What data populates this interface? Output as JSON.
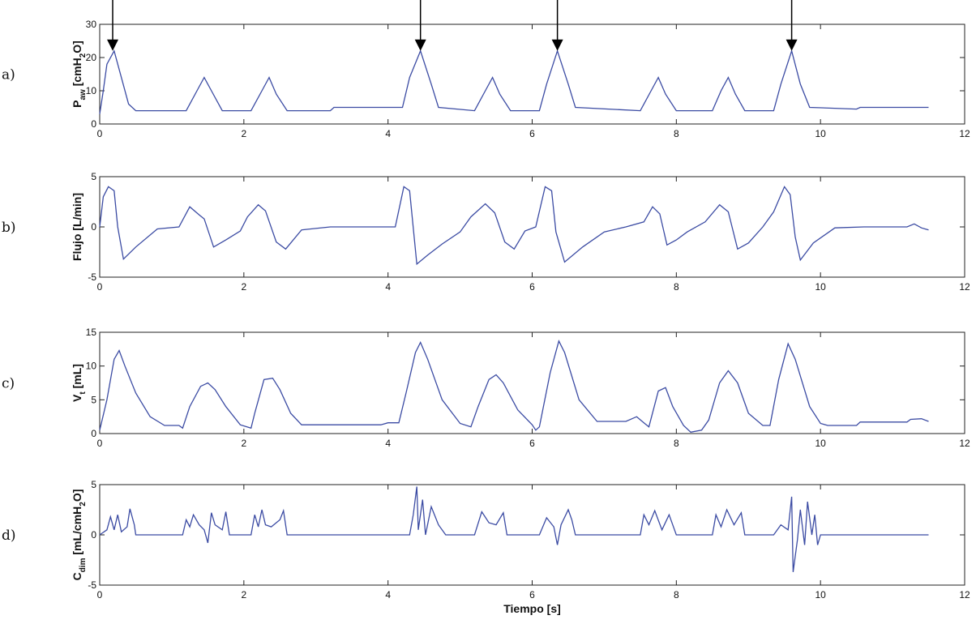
{
  "chart_data": [
    {
      "type": "line",
      "panel": "a)",
      "ylabel": [
        "P",
        "aw",
        " [cmH",
        "2",
        "O]"
      ],
      "color": "#3b4ba3",
      "xlim": [
        0,
        12
      ],
      "xticks": [
        0,
        2,
        4,
        6,
        8,
        10,
        12
      ],
      "ylim": [
        0,
        30
      ],
      "yticks": [
        0,
        10,
        20,
        30
      ],
      "arrows": [
        {
          "x": 0.18,
          "y": 22
        },
        {
          "x": 4.45,
          "y": 22
        },
        {
          "x": 6.35,
          "y": 22
        },
        {
          "x": 9.6,
          "y": 22
        }
      ],
      "x": [
        0,
        0.05,
        0.1,
        0.2,
        0.3,
        0.4,
        0.5,
        1.2,
        1.35,
        1.45,
        1.55,
        1.7,
        2.1,
        2.25,
        2.35,
        2.45,
        2.6,
        3.2,
        3.25,
        4.2,
        4.3,
        4.45,
        4.6,
        4.7,
        5.2,
        5.35,
        5.45,
        5.55,
        5.7,
        6.1,
        6.2,
        6.35,
        6.5,
        6.6,
        7.5,
        7.65,
        7.75,
        7.85,
        8.0,
        8.5,
        8.62,
        8.72,
        8.82,
        8.95,
        9.35,
        9.45,
        9.6,
        9.72,
        9.85,
        10.5,
        10.55,
        11.5
      ],
      "values": [
        3,
        10,
        18,
        22,
        14,
        6,
        4,
        4,
        10,
        14,
        10,
        4,
        4,
        10,
        14,
        9,
        4,
        4,
        5,
        5,
        14,
        22,
        12,
        5,
        4,
        10,
        14,
        9,
        4,
        4,
        12,
        22,
        12,
        5,
        4,
        10,
        14,
        9,
        4,
        4,
        10,
        14,
        9,
        4,
        4,
        12,
        22,
        12,
        5,
        4.5,
        5,
        5
      ]
    },
    {
      "type": "line",
      "panel": "b)",
      "ylabel": [
        "Flujo [L/min]"
      ],
      "color": "#3b4ba3",
      "xlim": [
        0,
        12
      ],
      "xticks": [
        0,
        2,
        4,
        6,
        8,
        10,
        12
      ],
      "ylim": [
        -5,
        5
      ],
      "yticks": [
        -5,
        0,
        5
      ],
      "x": [
        0,
        0.05,
        0.12,
        0.2,
        0.25,
        0.33,
        0.5,
        0.8,
        1.1,
        1.25,
        1.38,
        1.45,
        1.58,
        1.75,
        1.95,
        2.05,
        2.2,
        2.3,
        2.45,
        2.58,
        2.8,
        3.2,
        4.1,
        4.22,
        4.3,
        4.4,
        4.55,
        4.75,
        5.0,
        5.15,
        5.35,
        5.48,
        5.62,
        5.75,
        5.9,
        6.05,
        6.18,
        6.27,
        6.33,
        6.45,
        6.7,
        7.0,
        7.3,
        7.55,
        7.67,
        7.77,
        7.87,
        8.0,
        8.15,
        8.4,
        8.6,
        8.72,
        8.85,
        9.0,
        9.2,
        9.35,
        9.5,
        9.58,
        9.65,
        9.72,
        9.9,
        10.2,
        10.6,
        11.2,
        11.3,
        11.4,
        11.5
      ],
      "values": [
        0,
        3,
        4,
        3.6,
        0,
        -3.2,
        -2,
        -0.2,
        0,
        2,
        1.2,
        0.8,
        -2,
        -1.3,
        -0.4,
        1,
        2.2,
        1.6,
        -1.5,
        -2.2,
        -0.3,
        0,
        0,
        4,
        3.6,
        -3.7,
        -2.8,
        -1.7,
        -0.5,
        1,
        2.3,
        1.4,
        -1.5,
        -2.2,
        -0.4,
        0,
        4,
        3.6,
        -0.5,
        -3.5,
        -2,
        -0.5,
        0,
        0.5,
        2,
        1.3,
        -1.8,
        -1.3,
        -0.5,
        0.5,
        2.2,
        1.5,
        -2.2,
        -1.6,
        0,
        1.5,
        4,
        3.2,
        -1,
        -3.3,
        -1.6,
        -0.1,
        0,
        0,
        0.3,
        -0.1,
        -0.3
      ]
    },
    {
      "type": "line",
      "panel": "c)",
      "ylabel": [
        "V",
        "t",
        " [mL]"
      ],
      "color": "#3b4ba3",
      "xlim": [
        0,
        12
      ],
      "xticks": [
        0,
        2,
        4,
        6,
        8,
        10,
        12
      ],
      "ylim": [
        0,
        15
      ],
      "yticks": [
        0,
        5,
        10,
        15
      ],
      "x": [
        0,
        0.1,
        0.2,
        0.27,
        0.35,
        0.5,
        0.7,
        0.9,
        1.1,
        1.15,
        1.25,
        1.4,
        1.5,
        1.6,
        1.75,
        1.95,
        2.1,
        2.15,
        2.28,
        2.4,
        2.5,
        2.65,
        2.8,
        3.5,
        3.9,
        4.0,
        4.15,
        4.25,
        4.38,
        4.45,
        4.55,
        4.75,
        5.0,
        5.15,
        5.25,
        5.4,
        5.5,
        5.6,
        5.8,
        6.0,
        6.05,
        6.1,
        6.25,
        6.37,
        6.45,
        6.65,
        6.9,
        7.3,
        7.45,
        7.55,
        7.62,
        7.75,
        7.85,
        7.95,
        8.1,
        8.2,
        8.35,
        8.45,
        8.6,
        8.72,
        8.85,
        9.0,
        9.2,
        9.3,
        9.42,
        9.55,
        9.65,
        9.85,
        10.0,
        10.1,
        10.5,
        10.55,
        11.2,
        11.25,
        11.4,
        11.5
      ],
      "values": [
        0.5,
        5,
        11,
        12.3,
        10,
        6,
        2.5,
        1.2,
        1.2,
        0.8,
        4,
        7,
        7.5,
        6.5,
        4,
        1.3,
        0.8,
        3,
        8,
        8.2,
        6.5,
        3,
        1.3,
        1.3,
        1.3,
        1.6,
        1.6,
        6,
        12,
        13.5,
        11,
        5,
        1.5,
        1,
        4,
        8,
        8.7,
        7.5,
        3.5,
        1.3,
        0.5,
        1,
        9,
        13.7,
        12,
        5,
        1.8,
        1.8,
        2.5,
        1.6,
        1,
        6.3,
        6.8,
        4,
        1.2,
        0.2,
        0.5,
        2,
        7.5,
        9.3,
        7.5,
        3,
        1.2,
        1.2,
        8,
        13.3,
        11,
        4,
        1.5,
        1.2,
        1.2,
        1.7,
        1.7,
        2.1,
        2.2,
        1.8
      ]
    },
    {
      "type": "line",
      "panel": "d)",
      "ylabel": [
        "C",
        "dim",
        " [mL/cmH",
        "2",
        "O]"
      ],
      "xlabel": "Tiempo [s]",
      "color": "#3b4ba3",
      "xlim": [
        0,
        12
      ],
      "xticks": [
        0,
        2,
        4,
        6,
        8,
        10,
        12
      ],
      "ylim": [
        -5,
        5
      ],
      "yticks": [
        -5,
        0,
        5
      ],
      "x": [
        0,
        0.1,
        0.15,
        0.2,
        0.25,
        0.3,
        0.38,
        0.42,
        0.48,
        0.5,
        1.15,
        1.2,
        1.25,
        1.3,
        1.38,
        1.45,
        1.5,
        1.55,
        1.6,
        1.7,
        1.75,
        1.8,
        2.1,
        2.15,
        2.2,
        2.25,
        2.3,
        2.38,
        2.5,
        2.55,
        2.6,
        4.3,
        4.35,
        4.4,
        4.42,
        4.48,
        4.52,
        4.6,
        4.7,
        4.8,
        5.2,
        5.3,
        5.4,
        5.5,
        5.6,
        5.65,
        6.1,
        6.2,
        6.3,
        6.35,
        6.4,
        6.5,
        6.55,
        6.6,
        7.5,
        7.55,
        7.62,
        7.7,
        7.8,
        7.9,
        8.0,
        8.5,
        8.55,
        8.62,
        8.7,
        8.8,
        8.9,
        8.95,
        9.35,
        9.45,
        9.55,
        9.6,
        9.62,
        9.68,
        9.72,
        9.78,
        9.82,
        9.88,
        9.92,
        9.96,
        10.0,
        11.5
      ],
      "values": [
        0,
        0.5,
        1.8,
        0.5,
        2,
        0.3,
        0.8,
        2.6,
        1,
        0,
        0,
        1.5,
        0.8,
        2,
        1,
        0.5,
        -0.8,
        2.2,
        1,
        0.5,
        2.3,
        0,
        0,
        2,
        0.8,
        2.5,
        1,
        0.8,
        1.5,
        2.4,
        0,
        0,
        2,
        4.8,
        0.5,
        3.5,
        0,
        2.8,
        1,
        0,
        0,
        2.3,
        1.2,
        1,
        2.2,
        0,
        0,
        1.7,
        0.8,
        -1,
        1,
        2.5,
        1.5,
        0,
        0,
        2,
        1,
        2.4,
        0.5,
        2,
        0,
        0,
        2,
        0.8,
        2.5,
        1,
        2.2,
        0,
        0,
        1,
        0.5,
        3.8,
        -3.7,
        -0.5,
        2.5,
        -1,
        3.3,
        0,
        2,
        -1,
        0,
        0
      ]
    }
  ]
}
